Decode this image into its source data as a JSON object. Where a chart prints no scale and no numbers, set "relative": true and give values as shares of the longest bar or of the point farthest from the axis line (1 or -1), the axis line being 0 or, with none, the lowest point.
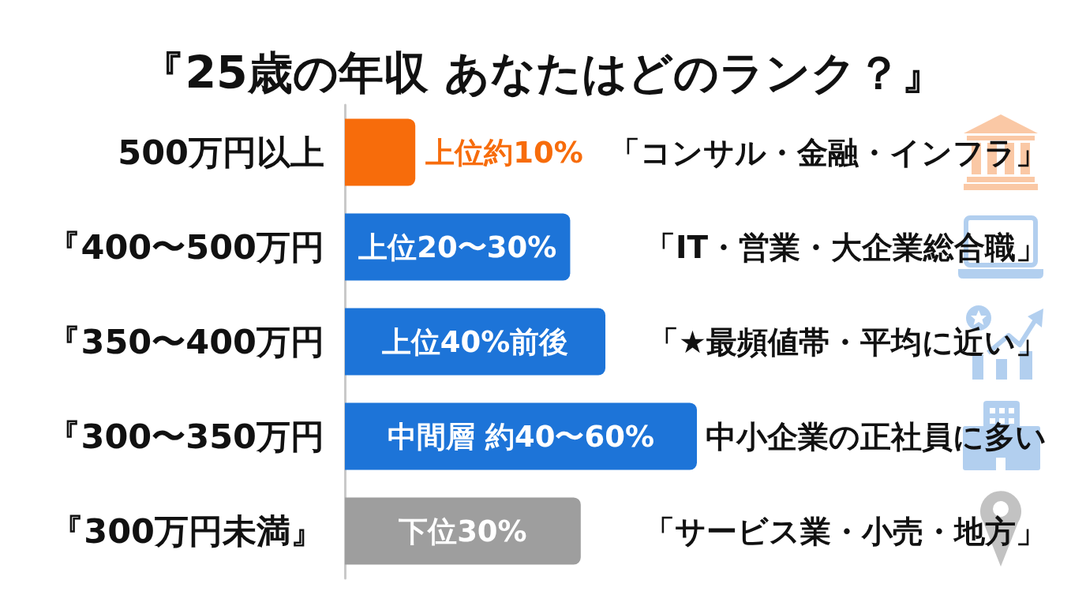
{
  "chart_data": {
    "type": "bar",
    "orientation": "horizontal",
    "relative": true,
    "title": "『25歳の年収 あなたはどのランク？』",
    "categories": [
      "500万円以上",
      "『400〜500万円",
      "『350〜400万円",
      "『300〜350万円",
      "『300万円未満』"
    ],
    "values": [
      0.2,
      0.64,
      0.74,
      1,
      0.67
    ],
    "colors": [
      "#f76c0b",
      "#1d74d8",
      "#1d74d8",
      "#1d74d8",
      "#9e9e9e"
    ],
    "annotations": [
      "上位約10%",
      "「コンサル・金融・インフラ」",
      "上位20〜30%",
      "「IT・営業・大企業総合職」",
      "上位40%前後",
      "「★最頻値帯・平均に近い」",
      "中間層 約40〜60%",
      "中小企業の正社員に多い",
      "下位30%",
      "「サービス業・小売・地方」"
    ]
  }
}
